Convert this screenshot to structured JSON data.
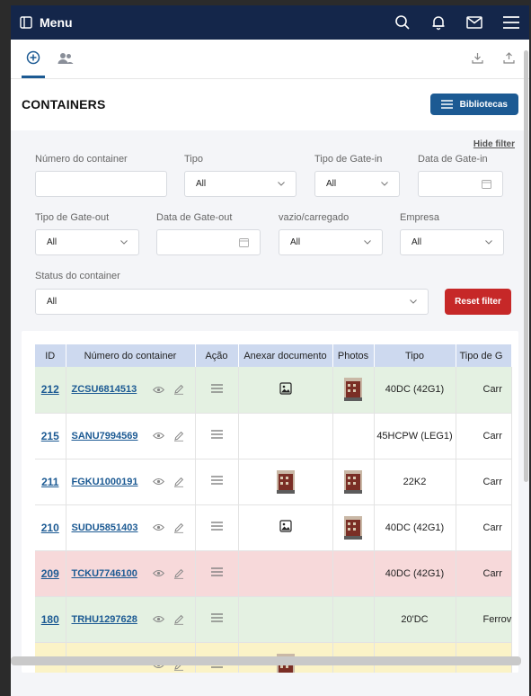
{
  "topbar": {
    "menu_label": "Menu",
    "bg": "#14264a"
  },
  "page": {
    "title": "CONTAINERS",
    "bibliotecas_label": "Bibliotecas"
  },
  "filters": {
    "hide_label": "Hide filter",
    "numero": {
      "label": "Número do container",
      "value": ""
    },
    "tipo": {
      "label": "Tipo",
      "value": "All"
    },
    "tipo_gate_in": {
      "label": "Tipo de Gate-in",
      "value": "All"
    },
    "data_gate_in": {
      "label": "Data de Gate-in",
      "value": ""
    },
    "tipo_gate_out": {
      "label": "Tipo de Gate-out",
      "value": "All"
    },
    "data_gate_out": {
      "label": "Data de Gate-out",
      "value": ""
    },
    "vazio": {
      "label": "vazio/carregado",
      "value": "All"
    },
    "empresa": {
      "label": "Empresa",
      "value": "All"
    },
    "status": {
      "label": "Status do container",
      "value": "All"
    },
    "reset_label": "Reset filter"
  },
  "table": {
    "headers": [
      "ID",
      "Número do container",
      "Ação",
      "Anexar documento",
      "Photos",
      "Tipo",
      "Tipo de G"
    ],
    "rows": [
      {
        "id": "212",
        "numero": "ZCSU6814513",
        "doc": "icon",
        "photo": "photo",
        "tipo": "40DC (42G1)",
        "gate": "Carr",
        "color": "green"
      },
      {
        "id": "215",
        "numero": "SANU7994569",
        "doc": "",
        "photo": "",
        "tipo": "45HCPW (LEG1)",
        "gate": "Carr",
        "color": "white"
      },
      {
        "id": "211",
        "numero": "FGKU1000191",
        "doc": "photo",
        "photo": "photo",
        "tipo": "22K2",
        "gate": "Carr",
        "color": "white"
      },
      {
        "id": "210",
        "numero": "SUDU5851403",
        "doc": "icon",
        "photo": "photo",
        "tipo": "40DC (42G1)",
        "gate": "Carr",
        "color": "white"
      },
      {
        "id": "209",
        "numero": "TCKU7746100",
        "doc": "",
        "photo": "",
        "tipo": "40DC (42G1)",
        "gate": "Carr",
        "color": "red"
      },
      {
        "id": "180",
        "numero": "TRHU1297628",
        "doc": "",
        "photo": "",
        "tipo": "20'DC",
        "gate": "Ferrov",
        "color": "green"
      },
      {
        "id": "",
        "numero": "",
        "doc": "photo",
        "photo": "",
        "tipo": "",
        "gate": "",
        "color": "yellow"
      }
    ]
  }
}
